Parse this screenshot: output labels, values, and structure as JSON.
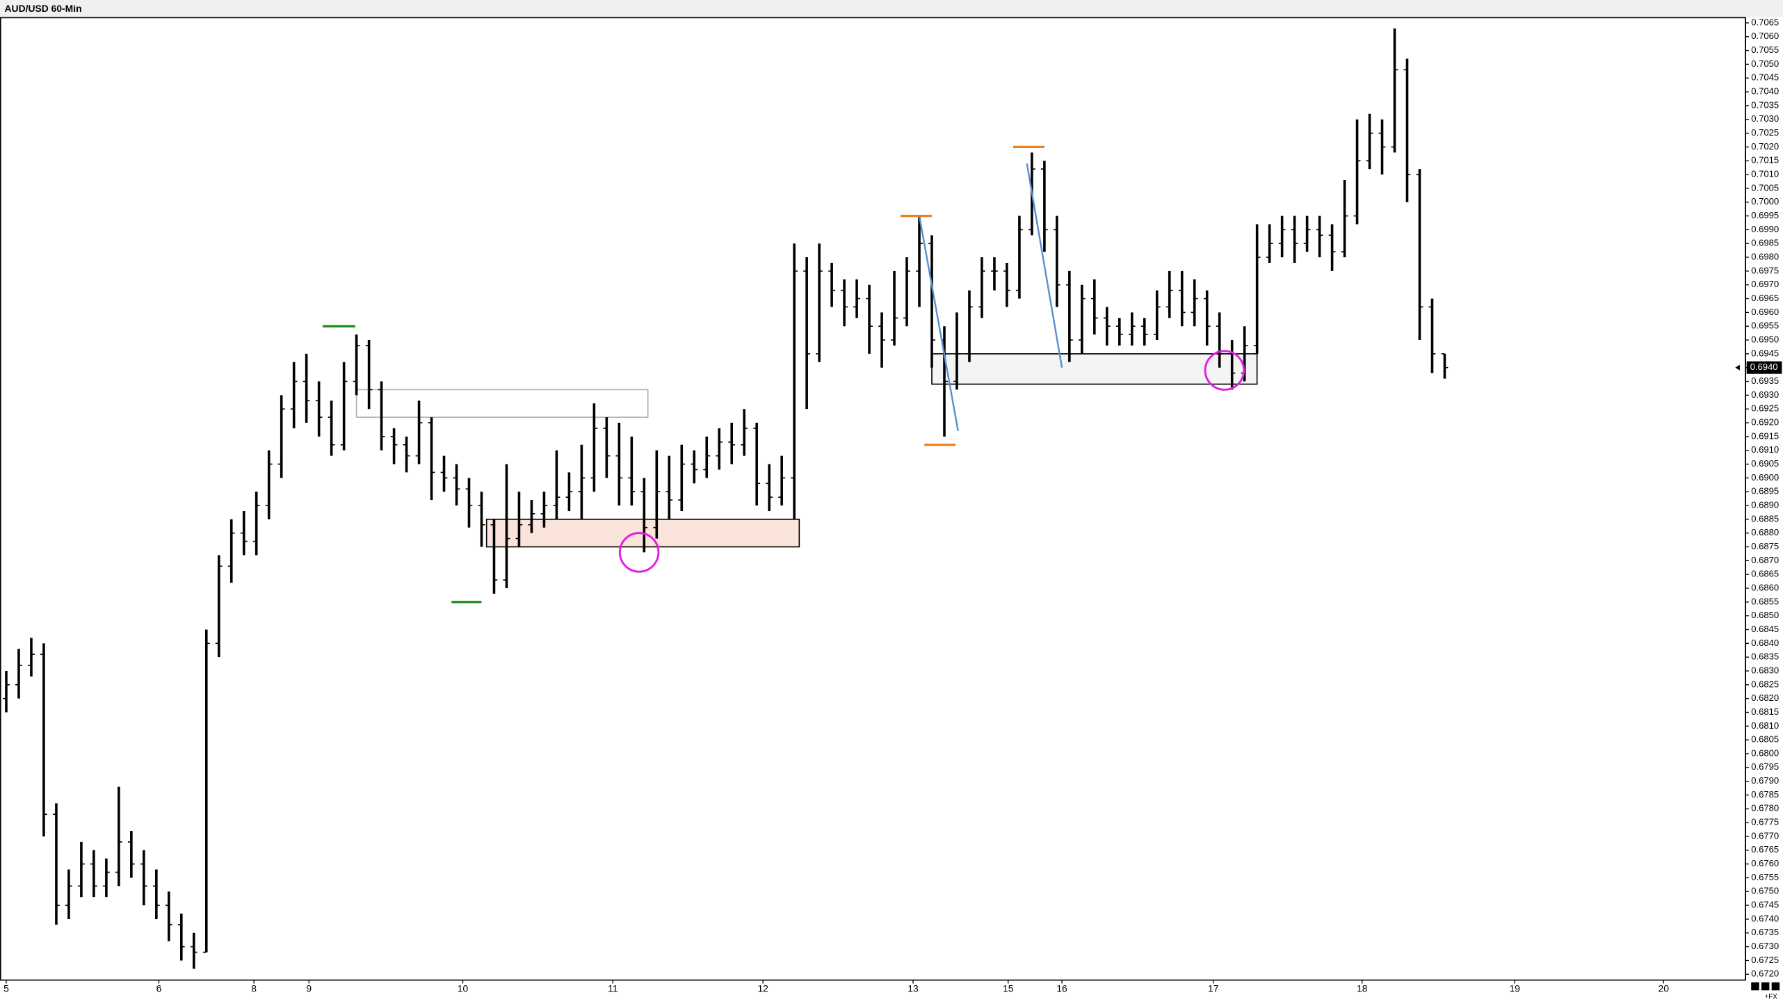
{
  "chart_data": {
    "type": "ohlc",
    "title": "AUD/USD 60-Min",
    "footer": "+FX",
    "x": [
      0,
      1,
      2,
      3,
      4,
      5,
      6,
      7,
      8,
      9,
      10,
      11,
      12,
      13,
      14,
      15,
      16,
      17,
      18,
      19,
      20,
      21,
      22,
      23,
      24,
      25,
      26,
      27,
      28,
      29,
      30,
      31,
      32,
      33,
      34,
      35,
      36,
      37,
      38,
      39,
      40,
      41,
      42,
      43,
      44,
      45,
      46,
      47,
      48,
      49,
      50,
      51,
      52,
      53,
      54,
      55,
      56,
      57,
      58,
      59,
      60,
      61,
      62,
      63,
      64,
      65,
      66,
      67,
      68,
      69,
      70,
      71,
      72,
      73,
      74,
      75,
      76,
      77,
      78,
      79,
      80,
      81,
      82,
      83,
      84,
      85,
      86,
      87,
      88,
      89,
      90,
      91,
      92,
      93,
      94,
      95,
      96,
      97,
      98,
      99,
      100,
      101,
      102,
      103,
      104,
      105,
      106,
      107,
      108,
      109,
      110,
      111,
      112,
      113,
      114,
      115
    ],
    "open": [
      0.682,
      0.6825,
      0.6832,
      0.6836,
      0.6778,
      0.6745,
      0.6752,
      0.676,
      0.6752,
      0.6757,
      0.6768,
      0.676,
      0.6752,
      0.6745,
      0.6738,
      0.673,
      0.6728,
      0.684,
      0.6868,
      0.688,
      0.6877,
      0.689,
      0.6905,
      0.6925,
      0.6935,
      0.6928,
      0.6922,
      0.6912,
      0.6935,
      0.6948,
      0.6932,
      0.6915,
      0.6912,
      0.6908,
      0.692,
      0.6902,
      0.69,
      0.6896,
      0.689,
      0.6883,
      0.6863,
      0.6878,
      0.6883,
      0.6887,
      0.689,
      0.6893,
      0.6895,
      0.69,
      0.6918,
      0.6908,
      0.69,
      0.6895,
      0.6882,
      0.6895,
      0.6892,
      0.6905,
      0.6903,
      0.6908,
      0.6913,
      0.6912,
      0.6918,
      0.6898,
      0.6893,
      0.69,
      0.6975,
      0.6945,
      0.6975,
      0.6968,
      0.6962,
      0.6965,
      0.6955,
      0.695,
      0.6958,
      0.6975,
      0.6985,
      0.695,
      0.6935,
      0.6945,
      0.6962,
      0.6975,
      0.6975,
      0.6968,
      0.699,
      0.7012,
      0.699,
      0.697,
      0.695,
      0.6965,
      0.6958,
      0.6955,
      0.6952,
      0.6955,
      0.6952,
      0.6962,
      0.6968,
      0.696,
      0.6965,
      0.6955,
      0.6945,
      0.6938,
      0.6948,
      0.698,
      0.6985,
      0.699,
      0.6985,
      0.699,
      0.6988,
      0.6982,
      0.6995,
      0.7015,
      0.7025,
      0.702,
      0.7048,
      0.701,
      0.6962,
      0.6945
    ],
    "high": [
      0.683,
      0.6838,
      0.6842,
      0.684,
      0.6782,
      0.6758,
      0.6768,
      0.6765,
      0.6762,
      0.6788,
      0.6772,
      0.6765,
      0.6758,
      0.675,
      0.6742,
      0.6735,
      0.6845,
      0.6872,
      0.6885,
      0.6888,
      0.6895,
      0.691,
      0.693,
      0.6942,
      0.6945,
      0.6935,
      0.6928,
      0.6942,
      0.6952,
      0.695,
      0.6935,
      0.6918,
      0.6915,
      0.6928,
      0.6922,
      0.6908,
      0.6905,
      0.69,
      0.6895,
      0.6885,
      0.6905,
      0.6895,
      0.6892,
      0.6895,
      0.691,
      0.6902,
      0.6912,
      0.6927,
      0.6922,
      0.692,
      0.6915,
      0.69,
      0.691,
      0.6908,
      0.6912,
      0.691,
      0.6915,
      0.6918,
      0.692,
      0.6925,
      0.692,
      0.6905,
      0.6908,
      0.6985,
      0.698,
      0.6985,
      0.6978,
      0.6972,
      0.6972,
      0.697,
      0.696,
      0.6975,
      0.698,
      0.6995,
      0.6988,
      0.6955,
      0.696,
      0.6968,
      0.698,
      0.698,
      0.6978,
      0.6995,
      0.7018,
      0.7015,
      0.6995,
      0.6975,
      0.697,
      0.6972,
      0.6962,
      0.6958,
      0.696,
      0.6958,
      0.6968,
      0.6975,
      0.6975,
      0.6972,
      0.6968,
      0.696,
      0.695,
      0.6955,
      0.6992,
      0.6992,
      0.6995,
      0.6995,
      0.6995,
      0.6995,
      0.6992,
      0.7008,
      0.703,
      0.7032,
      0.703,
      0.7063,
      0.7052,
      0.7012,
      0.6965,
      0.6945
    ],
    "low": [
      0.6815,
      0.682,
      0.6828,
      0.677,
      0.6738,
      0.674,
      0.6748,
      0.6748,
      0.6748,
      0.6752,
      0.6755,
      0.6745,
      0.674,
      0.6732,
      0.6725,
      0.6722,
      0.6728,
      0.6835,
      0.6862,
      0.6872,
      0.6872,
      0.6885,
      0.69,
      0.6918,
      0.692,
      0.6915,
      0.6908,
      0.691,
      0.693,
      0.6925,
      0.691,
      0.6905,
      0.6902,
      0.6905,
      0.6892,
      0.6895,
      0.689,
      0.6882,
      0.6875,
      0.6858,
      0.686,
      0.6875,
      0.688,
      0.6882,
      0.6885,
      0.6888,
      0.6885,
      0.6895,
      0.69,
      0.689,
      0.689,
      0.6873,
      0.6878,
      0.6885,
      0.6888,
      0.6898,
      0.69,
      0.6903,
      0.6905,
      0.6908,
      0.689,
      0.6888,
      0.689,
      0.6885,
      0.6925,
      0.6942,
      0.6962,
      0.6955,
      0.6958,
      0.6945,
      0.694,
      0.6948,
      0.6955,
      0.6962,
      0.694,
      0.6915,
      0.6932,
      0.6942,
      0.6958,
      0.6968,
      0.6962,
      0.6965,
      0.6988,
      0.6982,
      0.6962,
      0.6942,
      0.6945,
      0.6952,
      0.6948,
      0.6948,
      0.6948,
      0.6948,
      0.695,
      0.6958,
      0.6955,
      0.6955,
      0.6948,
      0.694,
      0.6932,
      0.6935,
      0.6945,
      0.6978,
      0.698,
      0.6978,
      0.6982,
      0.698,
      0.6975,
      0.698,
      0.6992,
      0.7012,
      0.701,
      0.7018,
      0.7,
      0.695,
      0.6938,
      0.6936
    ],
    "close": [
      0.6825,
      0.6832,
      0.6836,
      0.6778,
      0.6745,
      0.6752,
      0.676,
      0.6752,
      0.6757,
      0.6768,
      0.676,
      0.6752,
      0.6745,
      0.6738,
      0.673,
      0.6728,
      0.684,
      0.6868,
      0.688,
      0.6877,
      0.689,
      0.6905,
      0.6925,
      0.6935,
      0.6928,
      0.6922,
      0.6912,
      0.6935,
      0.6948,
      0.6932,
      0.6915,
      0.6912,
      0.6908,
      0.692,
      0.6902,
      0.69,
      0.6896,
      0.689,
      0.6883,
      0.6863,
      0.6878,
      0.6883,
      0.6887,
      0.689,
      0.6893,
      0.6895,
      0.69,
      0.6918,
      0.6908,
      0.69,
      0.6895,
      0.6882,
      0.6895,
      0.6892,
      0.6905,
      0.6903,
      0.6908,
      0.6913,
      0.6912,
      0.6918,
      0.6898,
      0.6893,
      0.69,
      0.6975,
      0.6945,
      0.6975,
      0.6968,
      0.6962,
      0.6965,
      0.6955,
      0.695,
      0.6958,
      0.6975,
      0.6985,
      0.695,
      0.6935,
      0.6945,
      0.6962,
      0.6975,
      0.6975,
      0.6968,
      0.699,
      0.7012,
      0.699,
      0.697,
      0.695,
      0.6965,
      0.6958,
      0.6955,
      0.6952,
      0.6955,
      0.6952,
      0.6962,
      0.6968,
      0.696,
      0.6965,
      0.6955,
      0.6945,
      0.6938,
      0.6948,
      0.698,
      0.6985,
      0.699,
      0.6985,
      0.699,
      0.6988,
      0.6982,
      0.6995,
      0.7015,
      0.7025,
      0.702,
      0.7048,
      0.701,
      0.6962,
      0.6945,
      0.694
    ],
    "color": "#000000",
    "xlim": [
      -0.5,
      139.05
    ],
    "ylim": [
      0.67179,
      0.70671
    ],
    "xticks": [
      {
        "value": 0,
        "label": "5"
      },
      {
        "value": 12.2,
        "label": "6"
      },
      {
        "value": 19.8,
        "label": "8"
      },
      {
        "value": 24.2,
        "label": "9"
      },
      {
        "value": 36.5,
        "label": "10"
      },
      {
        "value": 48.5,
        "label": "11"
      },
      {
        "value": 60.5,
        "label": "12"
      },
      {
        "value": 72.5,
        "label": "13"
      },
      {
        "value": 80.1,
        "label": "15"
      },
      {
        "value": 84.4,
        "label": "16"
      },
      {
        "value": 96.5,
        "label": "17"
      },
      {
        "value": 108.4,
        "label": "18"
      },
      {
        "value": 120.6,
        "label": "19"
      },
      {
        "value": 132.5,
        "label": "20"
      }
    ],
    "yticks": [
      {
        "value": 0.672,
        "label": "0.6720"
      },
      0.6725,
      {
        "value": 0.673,
        "label": "0.6730"
      },
      0.6735,
      {
        "value": 0.674,
        "label": "0.6740"
      },
      0.6745,
      {
        "value": 0.675,
        "label": "0.6750"
      },
      0.6755,
      {
        "value": 0.676,
        "label": "0.6760"
      },
      0.6765,
      {
        "value": 0.677,
        "label": "0.6770"
      },
      0.6775,
      {
        "value": 0.678,
        "label": "0.6780"
      },
      0.6785,
      {
        "value": 0.679,
        "label": "0.6790"
      },
      0.6795,
      {
        "value": 0.68,
        "label": "0.6800"
      },
      0.6805,
      {
        "value": 0.681,
        "label": "0.6810"
      },
      0.6815,
      {
        "value": 0.682,
        "label": "0.6820"
      },
      0.6825,
      {
        "value": 0.683,
        "label": "0.6830"
      },
      0.6835,
      {
        "value": 0.684,
        "label": "0.6840"
      },
      0.6845,
      {
        "value": 0.685,
        "label": "0.6850"
      },
      0.6855,
      {
        "value": 0.686,
        "label": "0.6860"
      },
      0.6865,
      {
        "value": 0.687,
        "label": "0.6870"
      },
      0.6875,
      {
        "value": 0.688,
        "label": "0.6880"
      },
      0.6885,
      {
        "value": 0.689,
        "label": "0.6890"
      },
      0.6895,
      {
        "value": 0.69,
        "label": "0.6900"
      },
      0.6905,
      {
        "value": 0.691,
        "label": "0.6910"
      },
      0.6915,
      {
        "value": 0.692,
        "label": "0.6920"
      },
      0.6925,
      {
        "value": 0.693,
        "label": "0.6930"
      },
      0.6935,
      {
        "value": 0.694,
        "label": "0.6940"
      },
      0.6945,
      {
        "value": 0.695,
        "label": "0.6950"
      },
      0.6955,
      {
        "value": 0.696,
        "label": "0.6960"
      },
      0.6965,
      {
        "value": 0.697,
        "label": "0.6970"
      },
      0.6975,
      {
        "value": 0.698,
        "label": "0.6980"
      },
      0.6985,
      {
        "value": 0.699,
        "label": "0.6990"
      },
      0.6995,
      {
        "value": 0.7,
        "label": "0.7000"
      },
      0.7005,
      {
        "value": 0.701,
        "label": "0.7010"
      },
      0.7015,
      {
        "value": 0.702,
        "label": "0.7020"
      },
      0.7025,
      {
        "value": 0.703,
        "label": "0.7030"
      },
      0.7035,
      {
        "value": 0.704,
        "label": "0.7040"
      },
      0.7045,
      {
        "value": 0.705,
        "label": "0.7050"
      },
      0.7055,
      {
        "value": 0.706,
        "label": "0.7060"
      },
      0.7065
    ],
    "last_price": {
      "value": 0.694,
      "label": "0.6940"
    },
    "zones": [
      {
        "x": [
          28,
          51.3
        ],
        "y": [
          0.6922,
          0.6932
        ],
        "fill": "none",
        "stroke": "#b0b0b0"
      },
      {
        "x": [
          38.4,
          63.4
        ],
        "y": [
          0.6875,
          0.6885
        ],
        "fill": "#fbe4dc",
        "stroke": "#000000"
      },
      {
        "x": [
          74,
          100
        ],
        "y": [
          0.6934,
          0.6945
        ],
        "fill": "#f4f4f4",
        "stroke": "#000000"
      }
    ],
    "levels": [
      {
        "x": [
          25.3,
          27.9
        ],
        "y": 0.6955,
        "color": "#1a8a1a"
      },
      {
        "x": [
          35.6,
          38.0
        ],
        "y": 0.6855,
        "color": "#1a8a1a"
      },
      {
        "x": [
          71.5,
          74.0
        ],
        "y": 0.6995,
        "color": "#f07f1a"
      },
      {
        "x": [
          80.5,
          83.0
        ],
        "y": 0.702,
        "color": "#f07f1a"
      },
      {
        "x": [
          73.4,
          75.9
        ],
        "y": 0.6912,
        "color": "#f07f1a"
      }
    ],
    "trendlines": [
      {
        "x": [
          73,
          76.1
        ],
        "y": [
          0.6995,
          0.6917
        ],
        "color": "#5b8fd0"
      },
      {
        "x": [
          81.6,
          84.4
        ],
        "y": [
          0.7014,
          0.694
        ],
        "color": "#5b8fd0"
      }
    ],
    "circles": [
      {
        "x": 50.6,
        "y": 0.6873,
        "color": "#e020e0"
      },
      {
        "x": 97.4,
        "y": 0.6939,
        "color": "#e020e0"
      }
    ]
  }
}
